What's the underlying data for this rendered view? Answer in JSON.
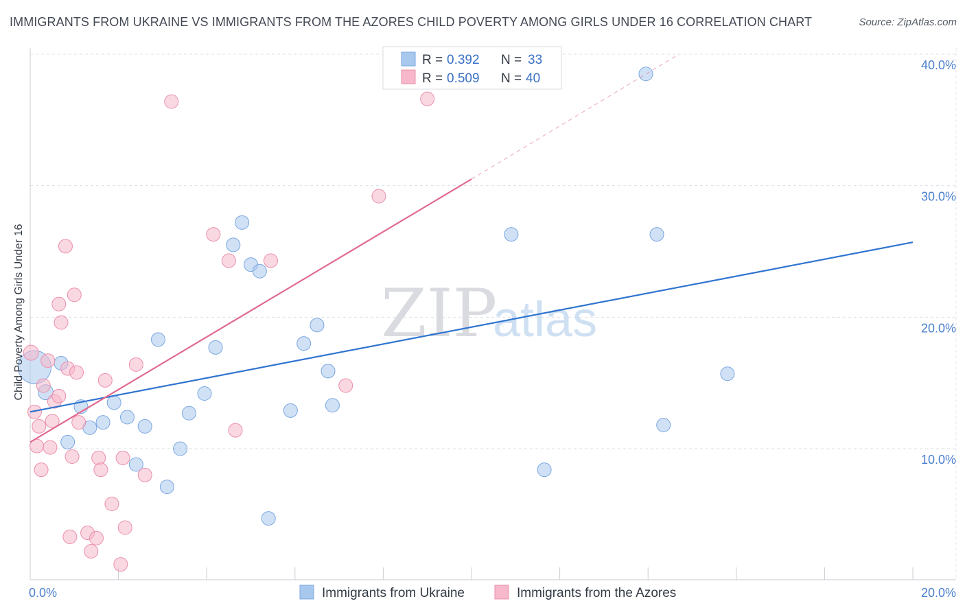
{
  "title": "IMMIGRANTS FROM UKRAINE VS IMMIGRANTS FROM THE AZORES CHILD POVERTY AMONG GIRLS UNDER 16 CORRELATION CHART",
  "source": "Source: ZipAtlas.com",
  "watermark": {
    "zip": "ZIP",
    "atlas": "atlas"
  },
  "legend": {
    "rows": [
      {
        "r_label": "R =",
        "r_value": "0.392",
        "n_label": "N =",
        "n_value": "33",
        "color": "#a9c8ee"
      },
      {
        "r_label": "R =",
        "r_value": "0.509",
        "n_label": "N =",
        "n_value": "40",
        "color": "#f6b8ca"
      }
    ]
  },
  "bottom_legend": [
    {
      "label": "Immigrants from Ukraine",
      "color": "#a9c8ee"
    },
    {
      "label": "Immigrants from the Azores",
      "color": "#f6b8ca"
    }
  ],
  "chart_data": {
    "type": "scatter",
    "title": "IMMIGRANTS FROM UKRAINE VS IMMIGRANTS FROM THE AZORES CHILD POVERTY AMONG GIRLS UNDER 16 CORRELATION CHART",
    "xlabel": "",
    "ylabel": "Child Poverty Among Girls Under 16",
    "xlim": [
      0,
      20
    ],
    "ylim": [
      0,
      40.5
    ],
    "x_tick_labels": [
      "0.0%",
      "20.0%"
    ],
    "y_ticks": [
      10,
      20,
      30,
      40
    ],
    "y_tick_labels": [
      "10.0%",
      "20.0%",
      "30.0%",
      "40.0%"
    ],
    "series": [
      {
        "name": "Immigrants from Ukraine",
        "color": "#a9c8ee",
        "stroke": "#7aa7e0",
        "trend_color": "#2f74d0",
        "trend": {
          "x0": 0,
          "y0": 12.8,
          "x1": 20,
          "y1": 25.7
        },
        "points": [
          [
            0.1,
            16.2,
            24
          ],
          [
            0.35,
            14.3,
            11
          ],
          [
            0.7,
            16.5,
            10
          ],
          [
            0.85,
            10.5,
            10
          ],
          [
            1.15,
            13.2,
            10
          ],
          [
            1.35,
            11.6,
            10
          ],
          [
            1.65,
            12.0,
            10
          ],
          [
            1.9,
            13.5,
            10
          ],
          [
            2.2,
            12.4,
            10
          ],
          [
            2.4,
            8.8,
            10
          ],
          [
            2.6,
            11.7,
            10
          ],
          [
            2.9,
            18.3,
            10
          ],
          [
            3.1,
            7.1,
            10
          ],
          [
            3.4,
            10.0,
            10
          ],
          [
            3.6,
            12.7,
            10
          ],
          [
            3.95,
            14.2,
            10
          ],
          [
            4.2,
            17.7,
            10
          ],
          [
            4.6,
            25.5,
            10
          ],
          [
            4.8,
            27.2,
            10
          ],
          [
            5.0,
            24.0,
            10
          ],
          [
            5.2,
            23.5,
            10
          ],
          [
            5.4,
            4.7,
            10
          ],
          [
            5.9,
            12.9,
            10
          ],
          [
            6.2,
            18.0,
            10
          ],
          [
            6.5,
            19.4,
            10
          ],
          [
            6.75,
            15.9,
            10
          ],
          [
            6.85,
            13.3,
            10
          ],
          [
            10.9,
            26.3,
            10
          ],
          [
            11.65,
            8.4,
            10
          ],
          [
            13.95,
            38.5,
            10
          ],
          [
            14.2,
            26.3,
            10
          ],
          [
            14.35,
            11.8,
            10
          ],
          [
            15.8,
            15.7,
            10
          ]
        ]
      },
      {
        "name": "Immigrants from the Azores",
        "color": "#f6b8ca",
        "stroke": "#eb8fab",
        "trend_color": "#e06a90",
        "trend": {
          "x0": 0,
          "y0": 10.5,
          "x1": 10,
          "y1": 30.5
        },
        "trend_dashed": {
          "x0": 10,
          "y0": 30.5,
          "x1": 14.7,
          "y1": 40.0
        },
        "points": [
          [
            0.02,
            17.3,
            11
          ],
          [
            0.1,
            12.8,
            10
          ],
          [
            0.15,
            10.2,
            10
          ],
          [
            0.2,
            11.7,
            10
          ],
          [
            0.25,
            8.4,
            10
          ],
          [
            0.3,
            14.8,
            10
          ],
          [
            0.4,
            16.7,
            10
          ],
          [
            0.45,
            10.1,
            10
          ],
          [
            0.5,
            12.1,
            10
          ],
          [
            0.55,
            13.6,
            10
          ],
          [
            0.65,
            14.0,
            10
          ],
          [
            0.65,
            21.0,
            10
          ],
          [
            0.7,
            19.6,
            10
          ],
          [
            0.8,
            25.4,
            10
          ],
          [
            0.85,
            16.1,
            10
          ],
          [
            0.9,
            3.3,
            10
          ],
          [
            0.95,
            9.4,
            10
          ],
          [
            1.0,
            21.7,
            10
          ],
          [
            1.05,
            15.8,
            10
          ],
          [
            1.1,
            12.0,
            10
          ],
          [
            1.3,
            3.6,
            10
          ],
          [
            1.38,
            2.2,
            10
          ],
          [
            1.5,
            3.2,
            10
          ],
          [
            1.55,
            9.3,
            10
          ],
          [
            1.6,
            8.4,
            10
          ],
          [
            1.7,
            15.2,
            10
          ],
          [
            1.85,
            5.8,
            10
          ],
          [
            2.05,
            1.2,
            10
          ],
          [
            2.1,
            9.3,
            10
          ],
          [
            2.15,
            4.0,
            10
          ],
          [
            2.4,
            16.4,
            10
          ],
          [
            2.6,
            8.0,
            10
          ],
          [
            3.2,
            36.4,
            10
          ],
          [
            4.15,
            26.3,
            10
          ],
          [
            4.5,
            24.3,
            10
          ],
          [
            4.65,
            11.4,
            10
          ],
          [
            5.45,
            24.3,
            10
          ],
          [
            7.15,
            14.8,
            10
          ],
          [
            7.9,
            29.2,
            10
          ],
          [
            9.0,
            36.6,
            10
          ]
        ]
      }
    ]
  }
}
